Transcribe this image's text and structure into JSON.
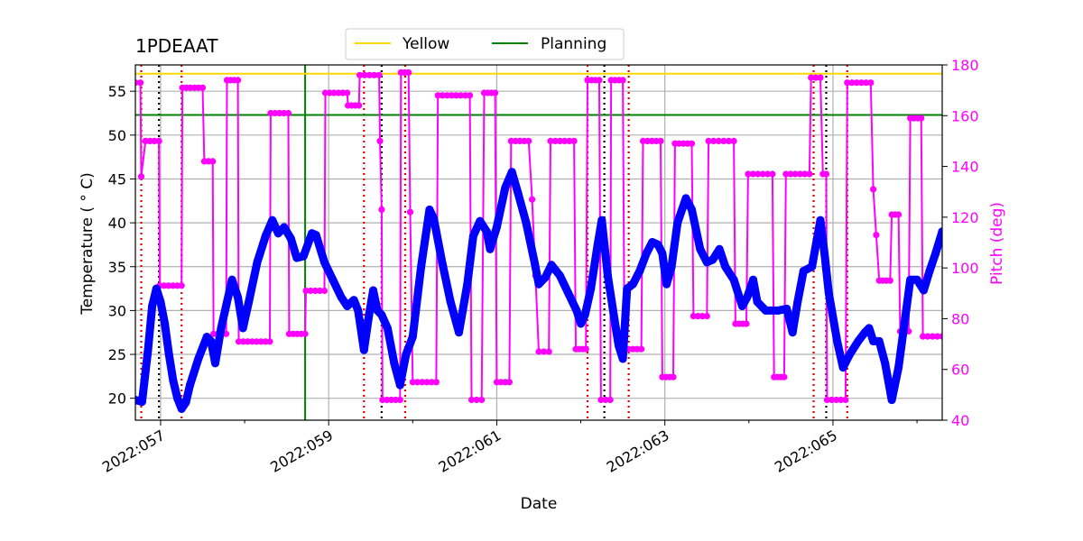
{
  "chart_data": {
    "type": "line",
    "title": "1PDEAAT",
    "xlabel": "Date",
    "ylabel_left": "Temperature ($^\\circ$C)",
    "ylabel_left_display": "Temperature ( ° C)",
    "ylabel_right": "Pitch (deg)",
    "xlim": [
      56.7,
      66.3
    ],
    "ylim_left": [
      17.5,
      58
    ],
    "ylim_right": [
      40,
      180
    ],
    "x_ticks": [
      57,
      59,
      61,
      63,
      65
    ],
    "x_tick_labels": [
      "2022:057",
      "2022:059",
      "2022:061",
      "2022:063",
      "2022:065"
    ],
    "y_ticks_left": [
      20,
      25,
      30,
      35,
      40,
      45,
      50,
      55
    ],
    "y_ticks_right": [
      40,
      60,
      80,
      100,
      120,
      140,
      160,
      180
    ],
    "grid": true,
    "legend": {
      "placement": "top-center",
      "entries": [
        {
          "name": "Yellow",
          "color": "#ffd700"
        },
        {
          "name": "Planning",
          "color": "#008000"
        }
      ]
    },
    "limits": [
      {
        "name": "Yellow",
        "value": 57.0,
        "color": "#ffd700"
      },
      {
        "name": "Planning",
        "value": 52.3,
        "color": "#008000"
      }
    ],
    "planning_vline_x": 58.72,
    "red_dotted_x": [
      56.77,
      57.25,
      59.42,
      59.91,
      62.08,
      62.57,
      64.77,
      65.17
    ],
    "black_dotted_x": [
      56.98,
      59.63,
      62.28,
      64.92
    ],
    "series": [
      {
        "name": "Temperature",
        "axis": "left",
        "color": "#0000ff",
        "points": [
          [
            56.7,
            19.8
          ],
          [
            56.78,
            19.6
          ],
          [
            56.85,
            25.5
          ],
          [
            56.9,
            30.5
          ],
          [
            56.95,
            32.5
          ],
          [
            57.0,
            31.0
          ],
          [
            57.05,
            28.5
          ],
          [
            57.1,
            25.0
          ],
          [
            57.15,
            22.0
          ],
          [
            57.2,
            20.0
          ],
          [
            57.25,
            18.8
          ],
          [
            57.3,
            19.5
          ],
          [
            57.35,
            21.5
          ],
          [
            57.45,
            24.5
          ],
          [
            57.55,
            27.0
          ],
          [
            57.6,
            26.5
          ],
          [
            57.65,
            24.0
          ],
          [
            57.72,
            28.0
          ],
          [
            57.85,
            33.5
          ],
          [
            57.92,
            31.5
          ],
          [
            57.98,
            28.0
          ],
          [
            58.05,
            31.0
          ],
          [
            58.15,
            35.5
          ],
          [
            58.25,
            38.5
          ],
          [
            58.33,
            40.3
          ],
          [
            58.4,
            38.8
          ],
          [
            58.47,
            39.5
          ],
          [
            58.55,
            38.2
          ],
          [
            58.62,
            36.0
          ],
          [
            58.7,
            36.2
          ],
          [
            58.8,
            38.8
          ],
          [
            58.85,
            38.6
          ],
          [
            58.95,
            35.5
          ],
          [
            59.05,
            33.5
          ],
          [
            59.15,
            31.5
          ],
          [
            59.22,
            30.5
          ],
          [
            59.3,
            31.2
          ],
          [
            59.35,
            30.0
          ],
          [
            59.42,
            25.5
          ],
          [
            59.48,
            29.5
          ],
          [
            59.53,
            32.3
          ],
          [
            59.58,
            30.0
          ],
          [
            59.63,
            29.5
          ],
          [
            59.7,
            28.0
          ],
          [
            59.78,
            24.0
          ],
          [
            59.85,
            21.5
          ],
          [
            59.92,
            25.0
          ],
          [
            60.0,
            27.0
          ],
          [
            60.1,
            35.0
          ],
          [
            60.2,
            41.5
          ],
          [
            60.25,
            40.5
          ],
          [
            60.35,
            35.5
          ],
          [
            60.45,
            31.0
          ],
          [
            60.55,
            27.5
          ],
          [
            60.65,
            33.0
          ],
          [
            60.72,
            38.5
          ],
          [
            60.8,
            40.2
          ],
          [
            60.88,
            39.0
          ],
          [
            60.92,
            37.0
          ],
          [
            61.0,
            39.5
          ],
          [
            61.1,
            44.0
          ],
          [
            61.18,
            45.8
          ],
          [
            61.25,
            43.5
          ],
          [
            61.35,
            40.0
          ],
          [
            61.45,
            35.5
          ],
          [
            61.5,
            33.0
          ],
          [
            61.58,
            33.8
          ],
          [
            61.65,
            35.2
          ],
          [
            61.75,
            34.0
          ],
          [
            61.85,
            32.0
          ],
          [
            61.95,
            30.0
          ],
          [
            62.0,
            28.5
          ],
          [
            62.05,
            29.5
          ],
          [
            62.12,
            32.5
          ],
          [
            62.2,
            37.5
          ],
          [
            62.25,
            40.3
          ],
          [
            62.32,
            34.0
          ],
          [
            62.4,
            29.0
          ],
          [
            62.45,
            26.0
          ],
          [
            62.5,
            24.5
          ],
          [
            62.55,
            32.5
          ],
          [
            62.62,
            33.0
          ],
          [
            62.7,
            34.5
          ],
          [
            62.78,
            36.5
          ],
          [
            62.85,
            37.8
          ],
          [
            62.92,
            37.5
          ],
          [
            62.97,
            36.5
          ],
          [
            63.02,
            33.0
          ],
          [
            63.08,
            35.0
          ],
          [
            63.15,
            40.0
          ],
          [
            63.25,
            42.8
          ],
          [
            63.32,
            41.5
          ],
          [
            63.42,
            37.0
          ],
          [
            63.5,
            35.5
          ],
          [
            63.57,
            35.8
          ],
          [
            63.65,
            37.0
          ],
          [
            63.72,
            35.0
          ],
          [
            63.82,
            33.5
          ],
          [
            63.92,
            30.5
          ],
          [
            63.98,
            31.5
          ],
          [
            64.05,
            33.5
          ],
          [
            64.1,
            31.0
          ],
          [
            64.2,
            30.0
          ],
          [
            64.35,
            30.0
          ],
          [
            64.45,
            30.2
          ],
          [
            64.52,
            27.5
          ],
          [
            64.58,
            31.0
          ],
          [
            64.65,
            34.5
          ],
          [
            64.75,
            35.0
          ],
          [
            64.85,
            40.3
          ],
          [
            64.9,
            36.5
          ],
          [
            64.95,
            32.0
          ],
          [
            65.05,
            26.5
          ],
          [
            65.12,
            23.5
          ],
          [
            65.2,
            25.0
          ],
          [
            65.3,
            26.5
          ],
          [
            65.38,
            27.5
          ],
          [
            65.43,
            28.0
          ],
          [
            65.48,
            26.5
          ],
          [
            65.55,
            26.5
          ],
          [
            65.62,
            24.0
          ],
          [
            65.7,
            19.8
          ],
          [
            65.78,
            23.5
          ],
          [
            65.85,
            28.5
          ],
          [
            65.92,
            33.5
          ],
          [
            66.0,
            33.5
          ],
          [
            66.08,
            32.3
          ],
          [
            66.15,
            34.5
          ],
          [
            66.22,
            36.5
          ],
          [
            66.3,
            39.0
          ]
        ]
      },
      {
        "name": "Pitch",
        "axis": "right",
        "color": "#ff00ff",
        "points": [
          [
            56.7,
            173
          ],
          [
            56.76,
            173
          ],
          [
            56.77,
            136
          ],
          [
            56.82,
            150
          ],
          [
            56.98,
            150
          ],
          [
            56.99,
            93
          ],
          [
            57.25,
            93
          ],
          [
            57.26,
            171
          ],
          [
            57.5,
            171
          ],
          [
            57.52,
            142
          ],
          [
            57.62,
            142
          ],
          [
            57.63,
            74
          ],
          [
            57.78,
            74
          ],
          [
            57.79,
            174
          ],
          [
            57.92,
            174
          ],
          [
            57.93,
            71
          ],
          [
            58.3,
            71
          ],
          [
            58.31,
            161
          ],
          [
            58.52,
            161
          ],
          [
            58.53,
            74
          ],
          [
            58.72,
            74
          ],
          [
            58.73,
            91
          ],
          [
            58.95,
            91
          ],
          [
            58.96,
            169
          ],
          [
            59.22,
            169
          ],
          [
            59.23,
            164
          ],
          [
            59.36,
            164
          ],
          [
            59.37,
            176
          ],
          [
            59.6,
            176
          ],
          [
            59.61,
            150
          ],
          [
            59.63,
            123
          ],
          [
            59.64,
            48
          ],
          [
            59.85,
            48
          ],
          [
            59.86,
            177
          ],
          [
            59.95,
            177
          ],
          [
            59.97,
            122
          ],
          [
            60.0,
            55
          ],
          [
            60.28,
            55
          ],
          [
            60.3,
            168
          ],
          [
            60.68,
            168
          ],
          [
            60.7,
            48
          ],
          [
            60.82,
            48
          ],
          [
            60.85,
            169
          ],
          [
            60.98,
            169
          ],
          [
            61.0,
            55
          ],
          [
            61.15,
            55
          ],
          [
            61.17,
            150
          ],
          [
            61.38,
            150
          ],
          [
            61.42,
            127
          ],
          [
            61.5,
            67
          ],
          [
            61.62,
            67
          ],
          [
            61.64,
            150
          ],
          [
            61.92,
            150
          ],
          [
            61.94,
            68
          ],
          [
            62.06,
            68
          ],
          [
            62.08,
            174
          ],
          [
            62.22,
            174
          ],
          [
            62.24,
            48
          ],
          [
            62.35,
            48
          ],
          [
            62.36,
            174
          ],
          [
            62.5,
            174
          ],
          [
            62.52,
            68
          ],
          [
            62.72,
            68
          ],
          [
            62.74,
            150
          ],
          [
            62.95,
            150
          ],
          [
            62.97,
            57
          ],
          [
            63.1,
            57
          ],
          [
            63.12,
            149
          ],
          [
            63.32,
            149
          ],
          [
            63.34,
            81
          ],
          [
            63.5,
            81
          ],
          [
            63.52,
            150
          ],
          [
            63.82,
            150
          ],
          [
            63.84,
            78
          ],
          [
            63.97,
            78
          ],
          [
            63.99,
            137
          ],
          [
            64.28,
            137
          ],
          [
            64.3,
            57
          ],
          [
            64.42,
            57
          ],
          [
            64.44,
            137
          ],
          [
            64.72,
            137
          ],
          [
            64.74,
            175
          ],
          [
            64.85,
            175
          ],
          [
            64.88,
            137
          ],
          [
            64.92,
            137
          ],
          [
            64.93,
            48
          ],
          [
            65.15,
            48
          ],
          [
            65.17,
            173
          ],
          [
            65.45,
            173
          ],
          [
            65.48,
            131
          ],
          [
            65.55,
            95
          ],
          [
            65.68,
            95
          ],
          [
            65.7,
            121
          ],
          [
            65.78,
            121
          ],
          [
            65.8,
            75
          ],
          [
            65.9,
            75
          ],
          [
            65.92,
            159
          ],
          [
            66.05,
            159
          ],
          [
            66.07,
            73
          ],
          [
            66.3,
            73
          ]
        ]
      }
    ]
  }
}
